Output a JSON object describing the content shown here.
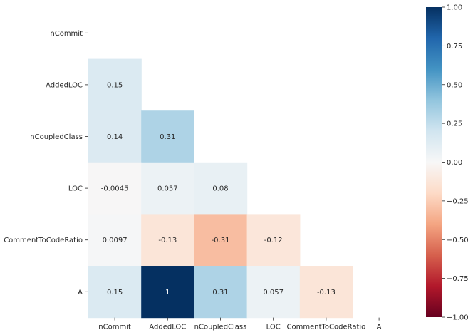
{
  "chart_data": {
    "type": "heatmap",
    "variables": [
      "nCommit",
      "AddedLOC",
      "nCoupledClass",
      "LOC",
      "CommentToCodeRatio",
      "A"
    ],
    "matrix": [
      [
        null,
        null,
        null,
        null,
        null,
        null
      ],
      [
        0.15,
        null,
        null,
        null,
        null,
        null
      ],
      [
        0.14,
        0.31,
        null,
        null,
        null,
        null
      ],
      [
        -0.0045,
        0.057,
        0.08,
        null,
        null,
        null
      ],
      [
        0.0097,
        -0.13,
        -0.31,
        -0.12,
        null,
        null
      ],
      [
        0.15,
        1,
        0.31,
        0.057,
        -0.13,
        null
      ]
    ],
    "mask": "upper-triangle-including-diagonal",
    "cell_labels": [
      [
        null,
        null,
        null,
        null,
        null,
        null
      ],
      [
        "0.15",
        null,
        null,
        null,
        null,
        null
      ],
      [
        "0.14",
        "0.31",
        null,
        null,
        null,
        null
      ],
      [
        "-0.0045",
        "0.057",
        "0.08",
        null,
        null,
        null
      ],
      [
        "0.0097",
        "-0.13",
        "-0.31",
        "-0.12",
        null,
        null
      ],
      [
        "0.15",
        "1",
        "0.31",
        "0.057",
        "-0.13",
        null
      ]
    ],
    "colormap": "RdBu",
    "vmin": -1.0,
    "vmax": 1.0,
    "colorbar": {
      "ticks": [
        1.0,
        0.75,
        0.5,
        0.25,
        0.0,
        -0.25,
        -0.5,
        -0.75,
        -1.0
      ],
      "tick_labels": [
        "1.00",
        "0.75",
        "0.50",
        "0.25",
        "0.00",
        "−0.25",
        "−0.50",
        "−0.75",
        "−1.00"
      ]
    }
  }
}
